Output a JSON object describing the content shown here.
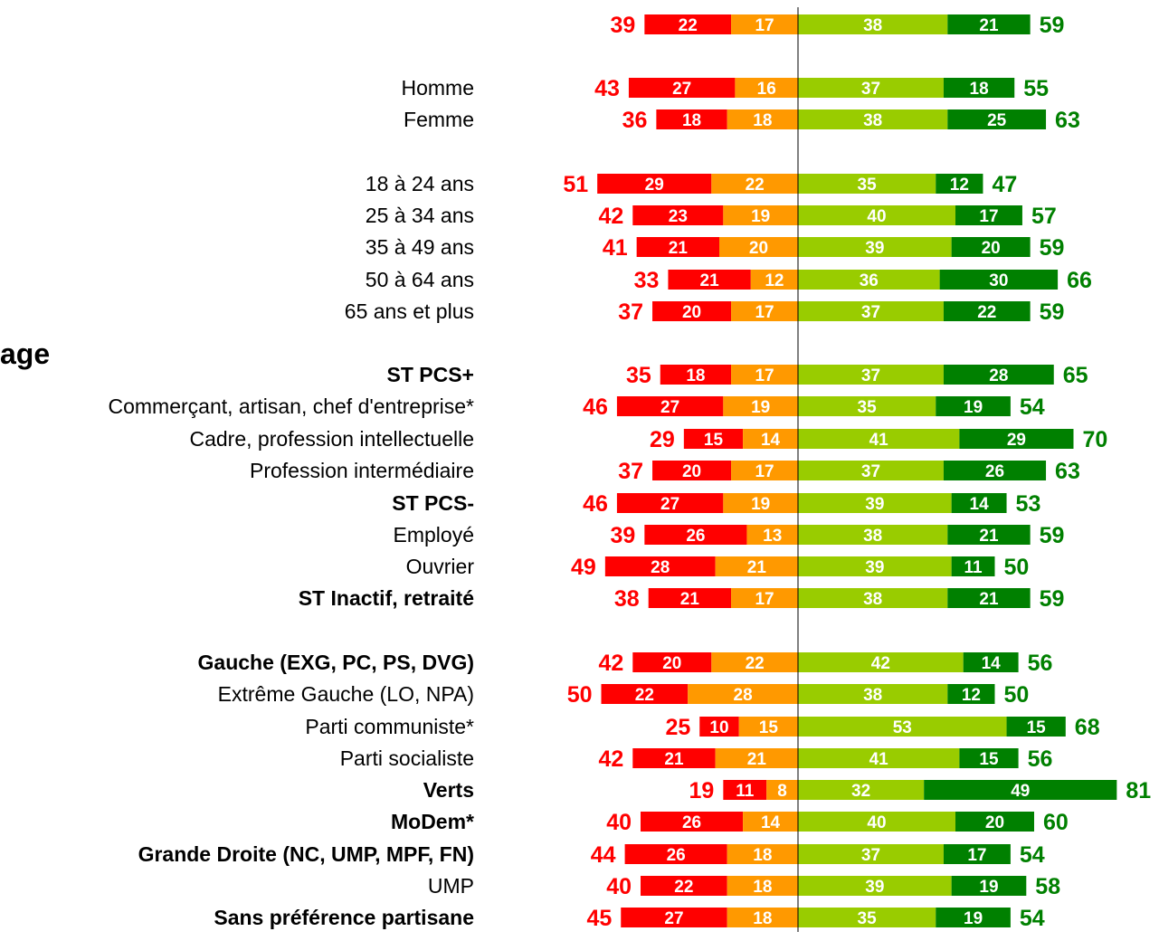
{
  "chart_data": {
    "type": "bar",
    "orientation": "horizontal-diverging",
    "section_label": "age",
    "colors": {
      "neg_strong": "#ff0000",
      "neg_light": "#ff9900",
      "pos_light": "#99cc00",
      "pos_strong": "#008000"
    },
    "rows": [
      {
        "label": "",
        "bold": false,
        "neg_total": 39,
        "neg_strong": 22,
        "neg_light": 17,
        "pos_light": 38,
        "pos_strong": 21,
        "pos_total": 59
      },
      {
        "label": "Homme",
        "bold": false,
        "neg_total": 43,
        "neg_strong": 27,
        "neg_light": 16,
        "pos_light": 37,
        "pos_strong": 18,
        "pos_total": 55
      },
      {
        "label": "Femme",
        "bold": false,
        "neg_total": 36,
        "neg_strong": 18,
        "neg_light": 18,
        "pos_light": 38,
        "pos_strong": 25,
        "pos_total": 63
      },
      {
        "label": "18 à 24 ans",
        "bold": false,
        "neg_total": 51,
        "neg_strong": 29,
        "neg_light": 22,
        "pos_light": 35,
        "pos_strong": 12,
        "pos_total": 47
      },
      {
        "label": "25 à 34 ans",
        "bold": false,
        "neg_total": 42,
        "neg_strong": 23,
        "neg_light": 19,
        "pos_light": 40,
        "pos_strong": 17,
        "pos_total": 57
      },
      {
        "label": "35 à 49 ans",
        "bold": false,
        "neg_total": 41,
        "neg_strong": 21,
        "neg_light": 20,
        "pos_light": 39,
        "pos_strong": 20,
        "pos_total": 59
      },
      {
        "label": "50 à 64 ans",
        "bold": false,
        "neg_total": 33,
        "neg_strong": 21,
        "neg_light": 12,
        "pos_light": 36,
        "pos_strong": 30,
        "pos_total": 66
      },
      {
        "label": "65 ans et plus",
        "bold": false,
        "neg_total": 37,
        "neg_strong": 20,
        "neg_light": 17,
        "pos_light": 37,
        "pos_strong": 22,
        "pos_total": 59
      },
      {
        "label": "ST PCS+",
        "bold": true,
        "neg_total": 35,
        "neg_strong": 18,
        "neg_light": 17,
        "pos_light": 37,
        "pos_strong": 28,
        "pos_total": 65
      },
      {
        "label": "Commerçant, artisan, chef d'entreprise*",
        "bold": false,
        "neg_total": 46,
        "neg_strong": 27,
        "neg_light": 19,
        "pos_light": 35,
        "pos_strong": 19,
        "pos_total": 54
      },
      {
        "label": "Cadre, profession intellectuelle",
        "bold": false,
        "neg_total": 29,
        "neg_strong": 15,
        "neg_light": 14,
        "pos_light": 41,
        "pos_strong": 29,
        "pos_total": 70
      },
      {
        "label": "Profession intermédiaire",
        "bold": false,
        "neg_total": 37,
        "neg_strong": 20,
        "neg_light": 17,
        "pos_light": 37,
        "pos_strong": 26,
        "pos_total": 63
      },
      {
        "label": "ST PCS-",
        "bold": true,
        "neg_total": 46,
        "neg_strong": 27,
        "neg_light": 19,
        "pos_light": 39,
        "pos_strong": 14,
        "pos_total": 53
      },
      {
        "label": "Employé",
        "bold": false,
        "neg_total": 39,
        "neg_strong": 26,
        "neg_light": 13,
        "pos_light": 38,
        "pos_strong": 21,
        "pos_total": 59
      },
      {
        "label": "Ouvrier",
        "bold": false,
        "neg_total": 49,
        "neg_strong": 28,
        "neg_light": 21,
        "pos_light": 39,
        "pos_strong": 11,
        "pos_total": 50
      },
      {
        "label": "ST Inactif, retraité",
        "bold": true,
        "neg_total": 38,
        "neg_strong": 21,
        "neg_light": 17,
        "pos_light": 38,
        "pos_strong": 21,
        "pos_total": 59
      },
      {
        "label": "Gauche (EXG, PC, PS, DVG)",
        "bold": true,
        "neg_total": 42,
        "neg_strong": 20,
        "neg_light": 22,
        "pos_light": 42,
        "pos_strong": 14,
        "pos_total": 56
      },
      {
        "label": "Extrême Gauche (LO, NPA)",
        "bold": false,
        "neg_total": 50,
        "neg_strong": 22,
        "neg_light": 28,
        "pos_light": 38,
        "pos_strong": 12,
        "pos_total": 50
      },
      {
        "label": "Parti communiste*",
        "bold": false,
        "neg_total": 25,
        "neg_strong": 10,
        "neg_light": 15,
        "pos_light": 53,
        "pos_strong": 15,
        "pos_total": 68
      },
      {
        "label": "Parti socialiste",
        "bold": false,
        "neg_total": 42,
        "neg_strong": 21,
        "neg_light": 21,
        "pos_light": 41,
        "pos_strong": 15,
        "pos_total": 56
      },
      {
        "label": "Verts",
        "bold": true,
        "neg_total": 19,
        "neg_strong": 11,
        "neg_light": 8,
        "pos_light": 32,
        "pos_strong": 49,
        "pos_total": 81
      },
      {
        "label": "MoDem*",
        "bold": true,
        "neg_total": 40,
        "neg_strong": 26,
        "neg_light": 14,
        "pos_light": 40,
        "pos_strong": 20,
        "pos_total": 60
      },
      {
        "label": "Grande Droite (NC, UMP, MPF, FN)",
        "bold": true,
        "neg_total": 44,
        "neg_strong": 26,
        "neg_light": 18,
        "pos_light": 37,
        "pos_strong": 17,
        "pos_total": 54
      },
      {
        "label": "UMP",
        "bold": false,
        "neg_total": 40,
        "neg_strong": 22,
        "neg_light": 18,
        "pos_light": 39,
        "pos_strong": 19,
        "pos_total": 58
      },
      {
        "label": "Sans préférence partisane",
        "bold": true,
        "neg_total": 45,
        "neg_strong": 27,
        "neg_light": 18,
        "pos_light": 35,
        "pos_strong": 19,
        "pos_total": 54
      }
    ]
  }
}
